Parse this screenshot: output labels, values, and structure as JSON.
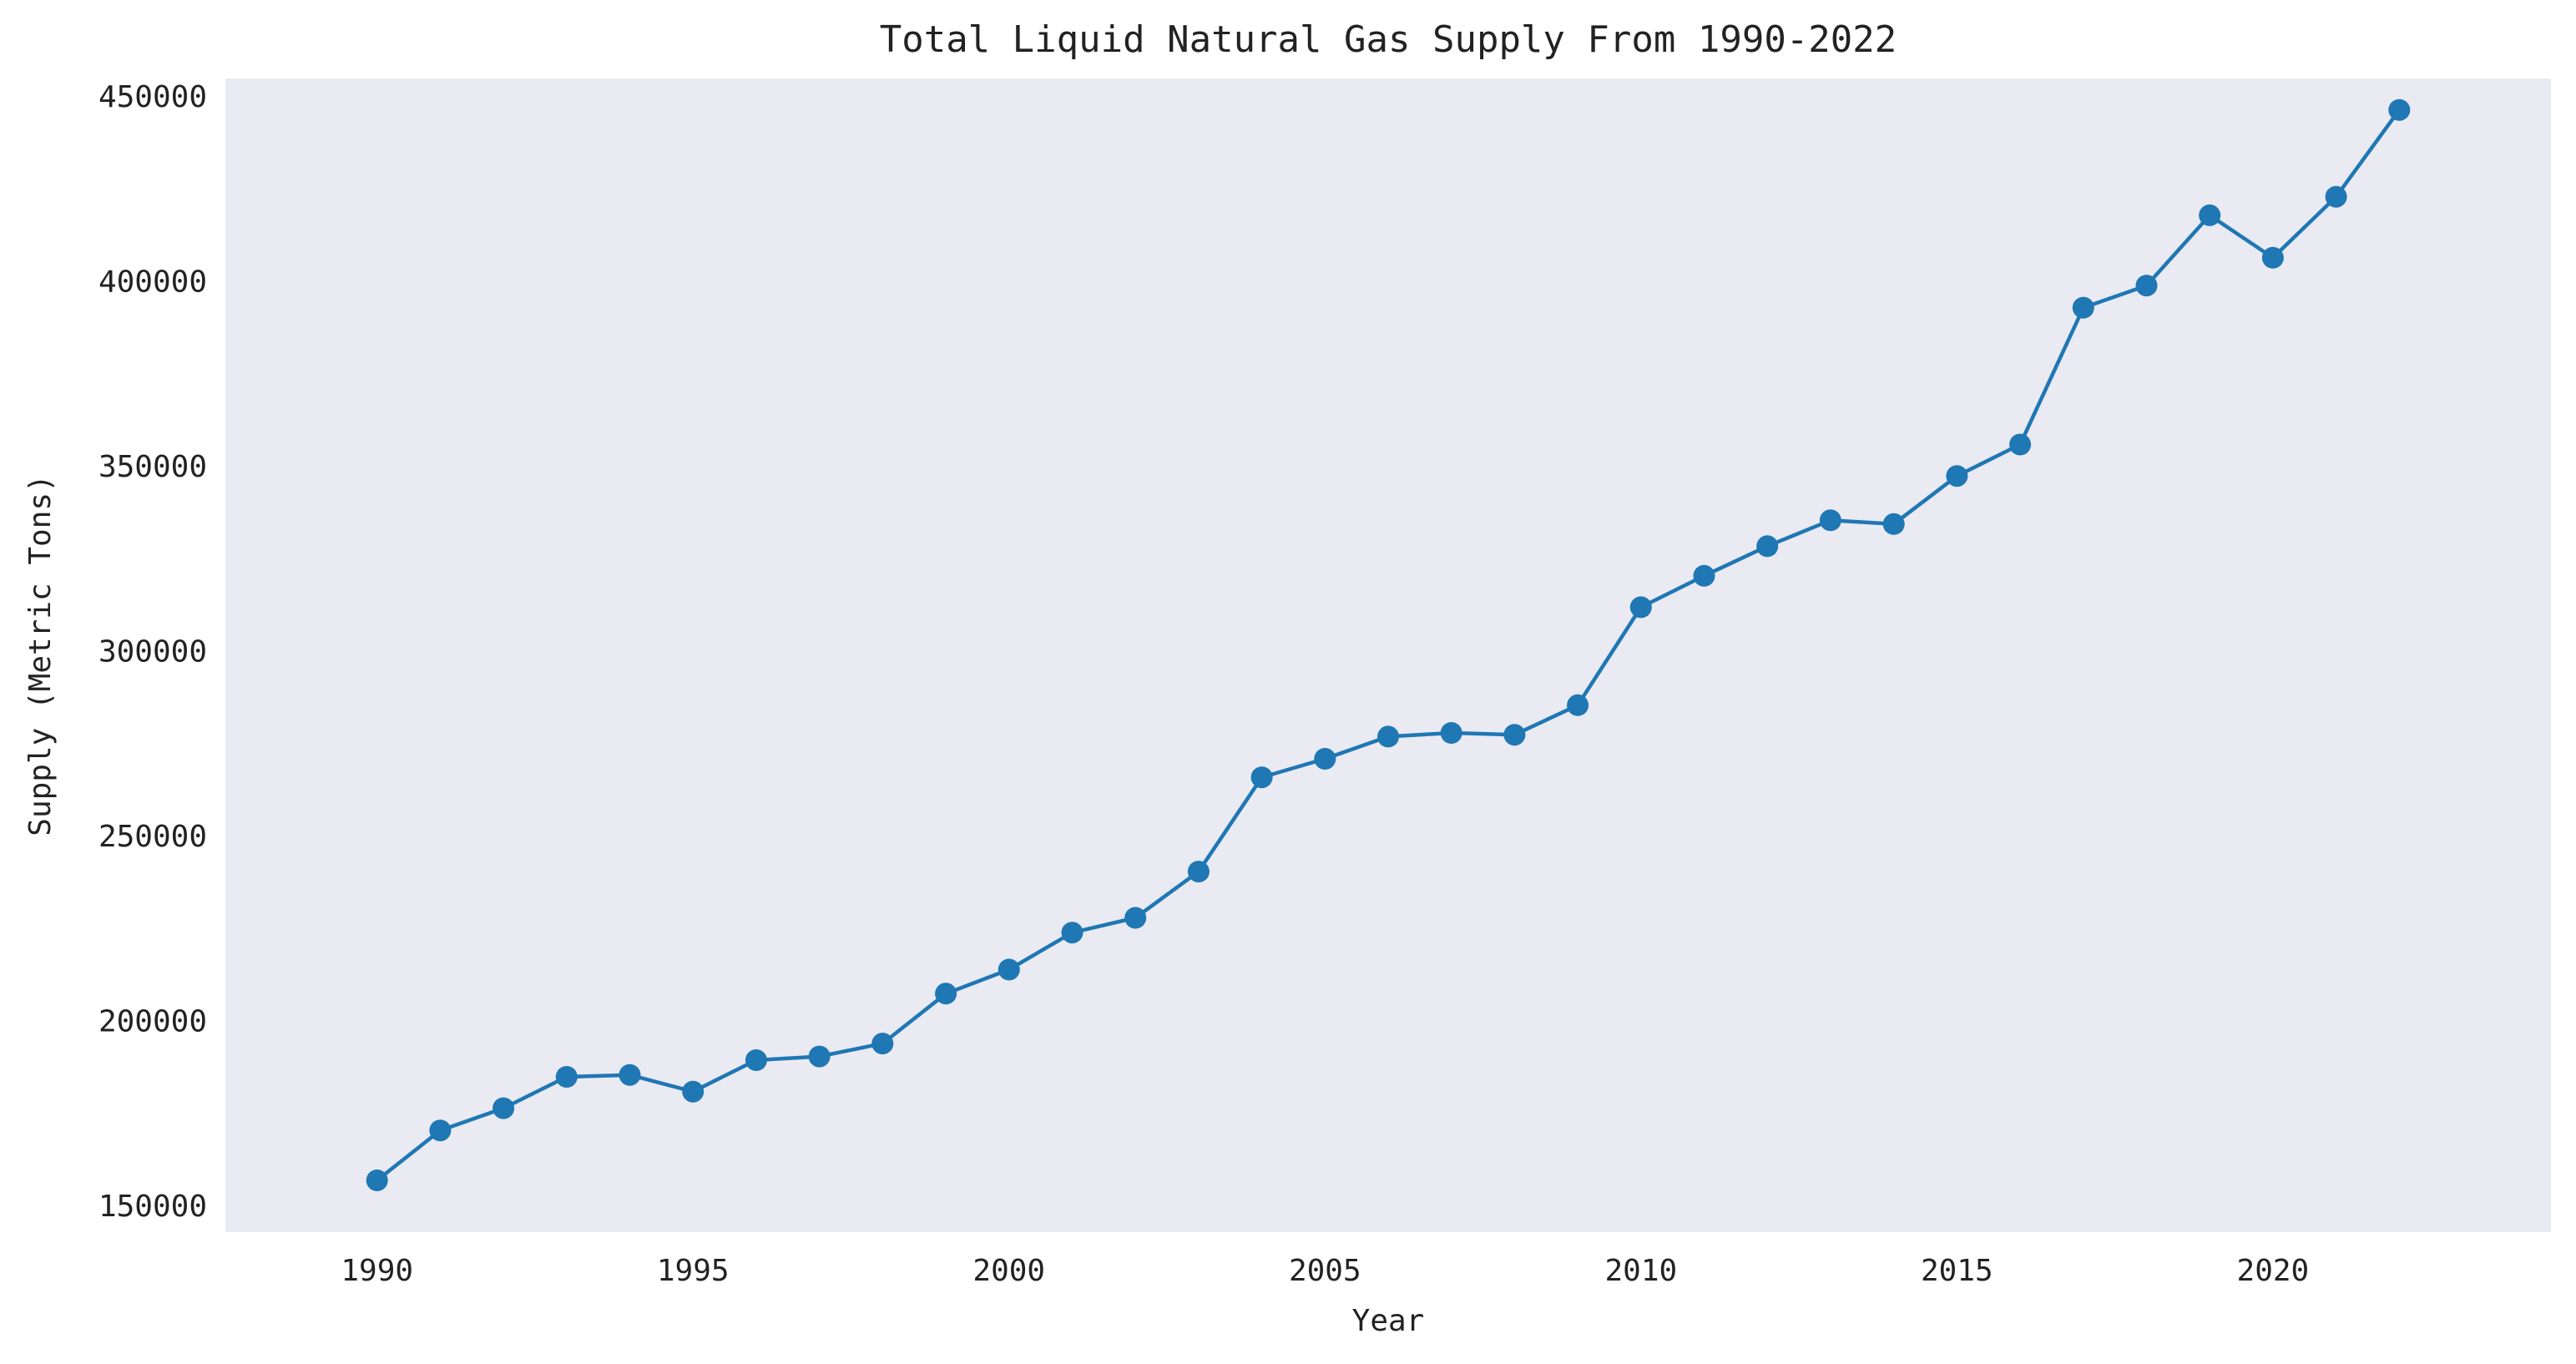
{
  "chart_data": {
    "type": "line",
    "title": "Total Liquid Natural Gas Supply From 1990-2022",
    "xlabel": "Year",
    "ylabel": "Supply (Metric Tons)",
    "xlim": [
      1987.6,
      2024.4
    ],
    "ylim": [
      143000,
      455000
    ],
    "xticks": [
      1990,
      1995,
      2000,
      2005,
      2010,
      2015,
      2020
    ],
    "yticks": [
      150000,
      200000,
      250000,
      300000,
      350000,
      400000,
      450000
    ],
    "grid": false,
    "legend": "none",
    "series": [
      {
        "marker": "circle",
        "x": [
          1990,
          1991,
          1992,
          1993,
          1994,
          1995,
          1996,
          1997,
          1998,
          1999,
          2000,
          2001,
          2002,
          2003,
          2004,
          2005,
          2006,
          2007,
          2008,
          2009,
          2010,
          2011,
          2012,
          2013,
          2014,
          2015,
          2016,
          2017,
          2018,
          2019,
          2020,
          2021,
          2022
        ],
        "values": [
          157000,
          170500,
          176500,
          185000,
          185500,
          181000,
          189500,
          190500,
          194000,
          207500,
          214000,
          224000,
          228000,
          240500,
          266000,
          271000,
          277000,
          278000,
          277500,
          285500,
          312000,
          320500,
          328500,
          335500,
          334500,
          347500,
          356000,
          393000,
          399000,
          418000,
          406500,
          423000,
          446500
        ]
      }
    ]
  },
  "colors": {
    "plot_background": "#eaeaf2",
    "line": "#1f77b4",
    "text": "#222222"
  }
}
